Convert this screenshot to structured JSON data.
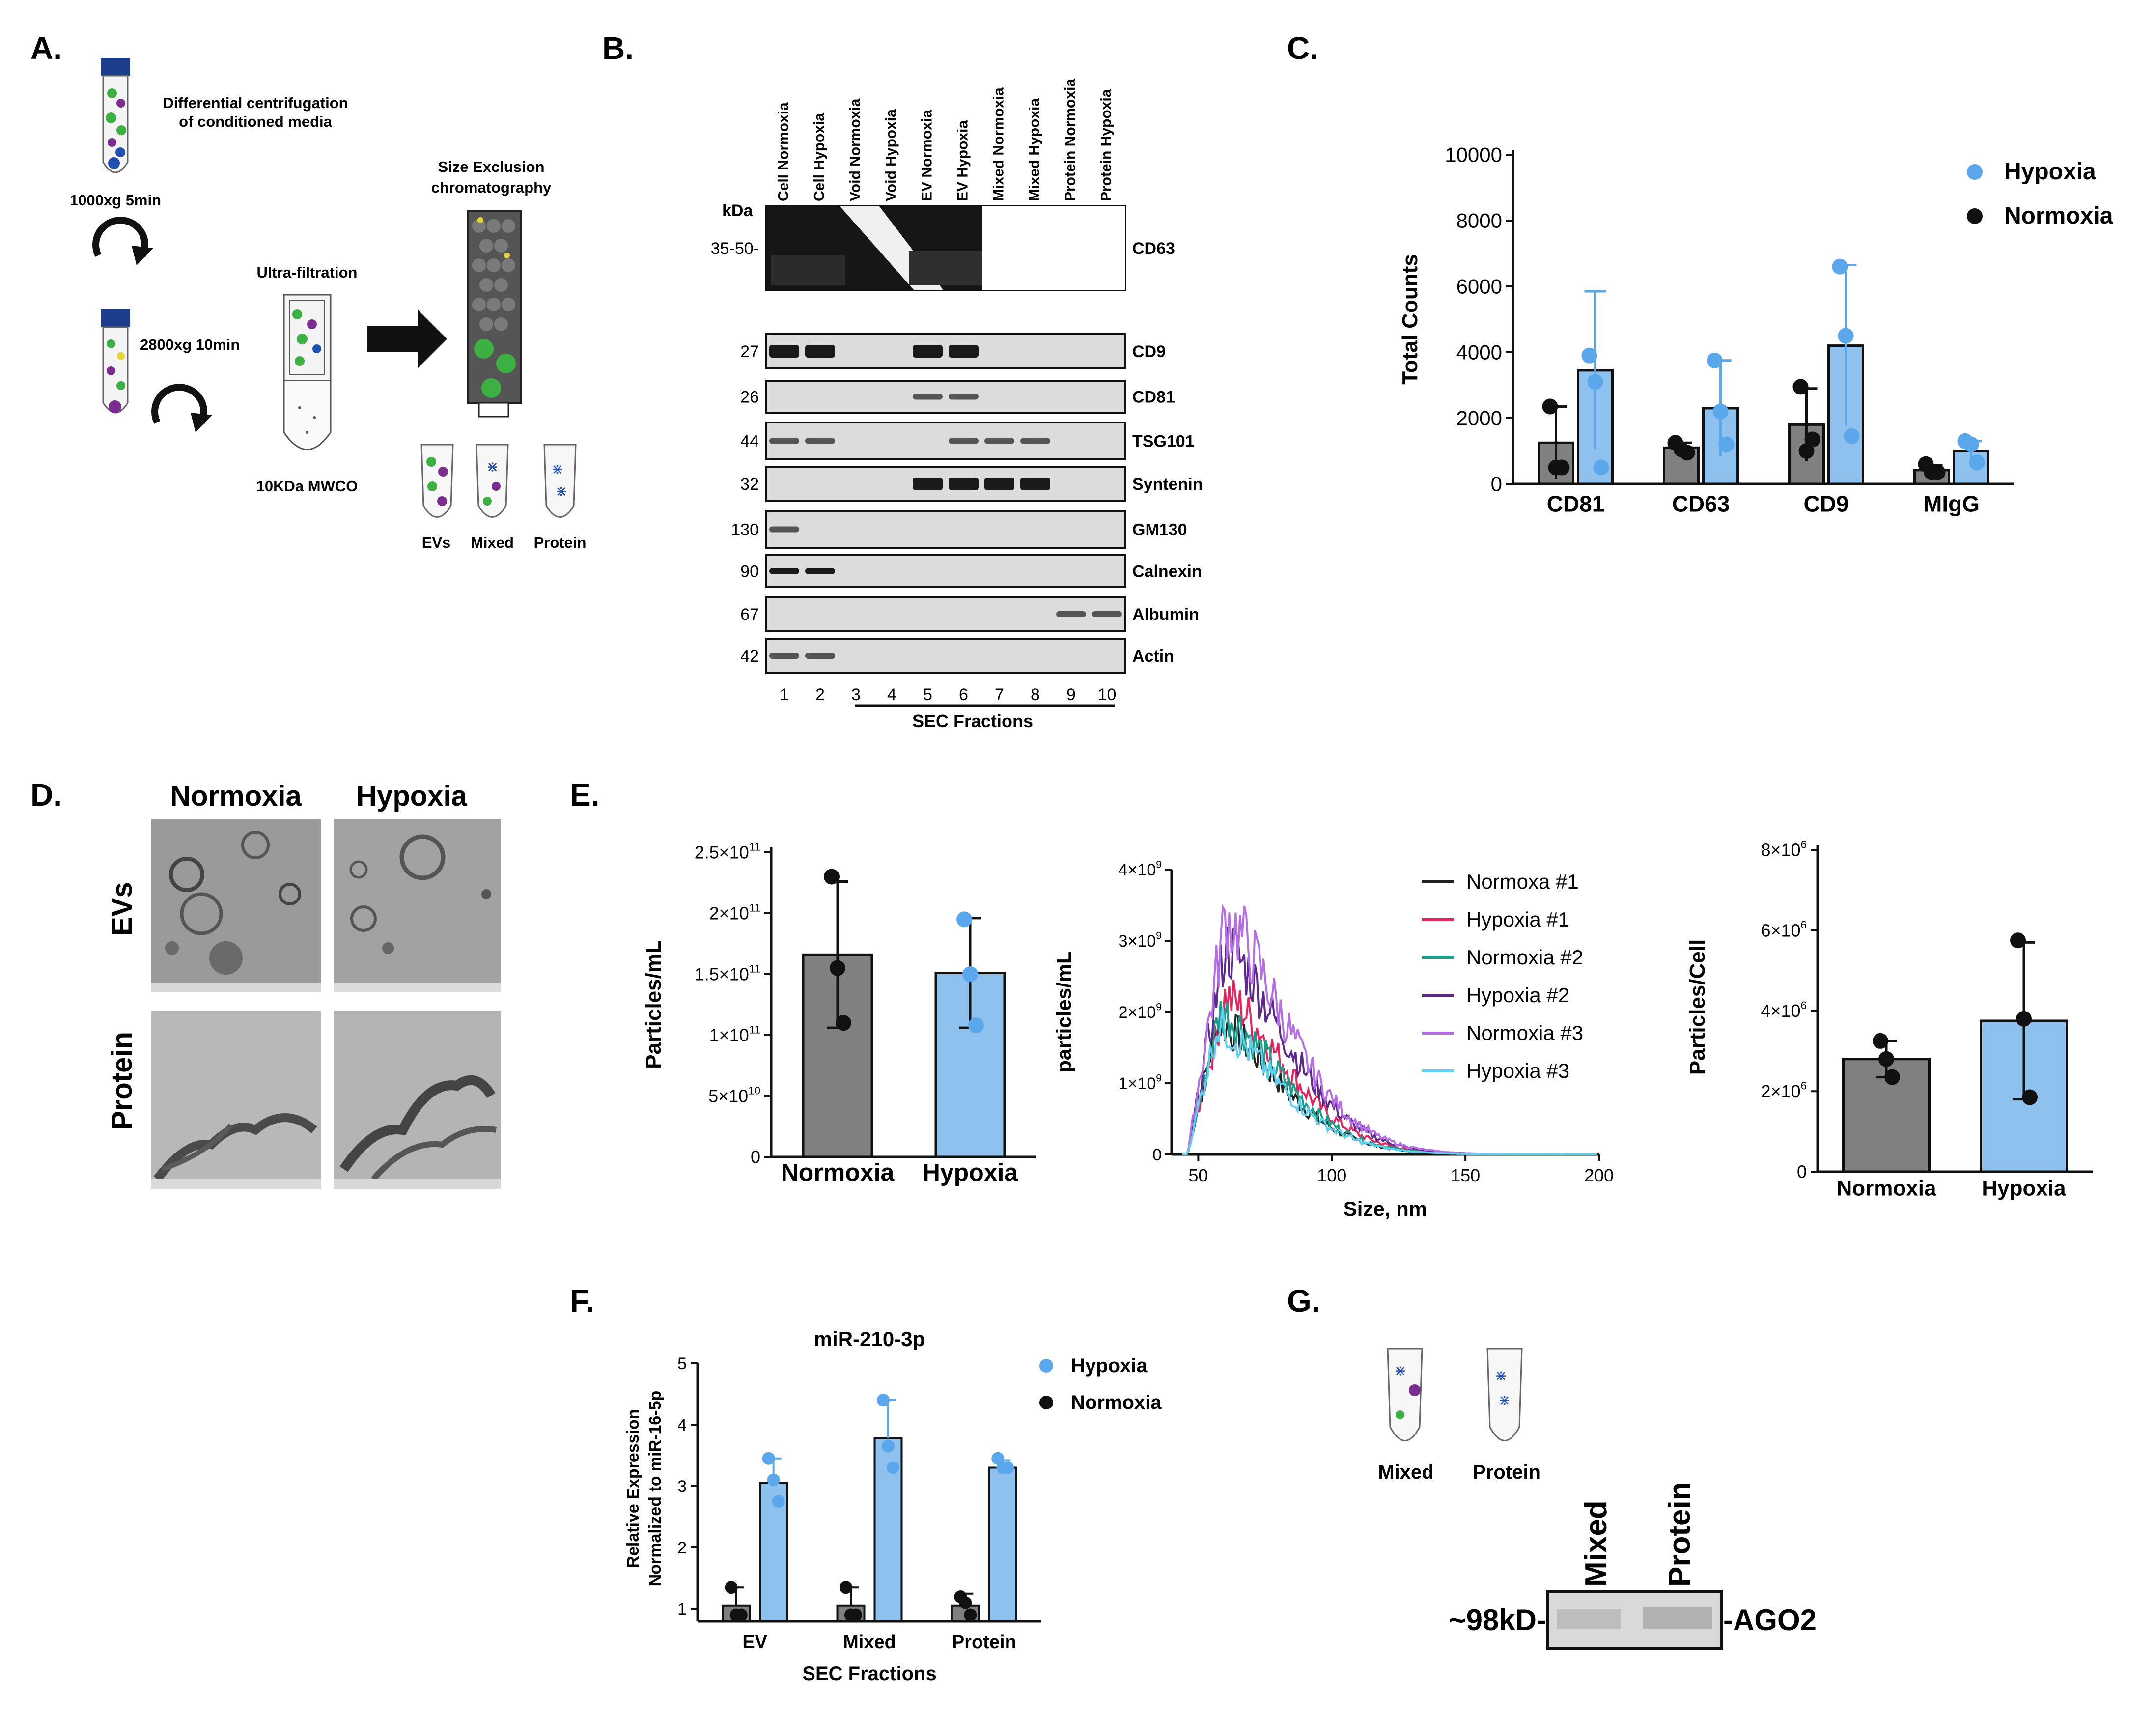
{
  "panels": {
    "a": "A.",
    "b": "B.",
    "c": "C.",
    "d": "D.",
    "e": "E.",
    "f": "F.",
    "g": "G."
  },
  "panel_a": {
    "step1": "Differential centrifugation",
    "step1b": "of conditioned media",
    "spin1": "1000xg 5min",
    "spin2": "2800xg 10min",
    "uf": "Ultra-filtration",
    "mwco": "10KDa MWCO",
    "sec1": "Size Exclusion",
    "sec2": "chromatography",
    "tubes": [
      "EVs",
      "Mixed",
      "Protein"
    ],
    "colors": {
      "tube_cap": "#1c3d8c",
      "green": "#3cb043",
      "purple": "#7b2c8f",
      "blue": "#1f4fb0",
      "yellow": "#e8d23a",
      "grey_bead": "#6e6e6e"
    }
  },
  "panel_b": {
    "lanes": [
      "Cell Normoxia",
      "Cell Hypoxia",
      "Void Normoxia",
      "Void Hypoxia",
      "EV Normoxia",
      "EV Hypoxia",
      "Mixed Normoxia",
      "Mixed Hypoxia",
      "Protein Normoxia",
      "Protein Hypoxia"
    ],
    "kda": "kDa",
    "blots": [
      {
        "mw": "35-50-",
        "name": "CD63"
      },
      {
        "mw": "27",
        "name": "CD9"
      },
      {
        "mw": "26",
        "name": "CD81"
      },
      {
        "mw": "44",
        "name": "TSG101"
      },
      {
        "mw": "32",
        "name": "Syntenin"
      },
      {
        "mw": "130",
        "name": "GM130"
      },
      {
        "mw": "90",
        "name": "Calnexin"
      },
      {
        "mw": "67",
        "name": "Albumin"
      },
      {
        "mw": "42",
        "name": "Actin"
      }
    ],
    "lane_numbers": [
      "1",
      "2",
      "3",
      "4",
      "5",
      "6",
      "7",
      "8",
      "9",
      "10"
    ],
    "sec_label": "SEC Fractions"
  },
  "panel_d": {
    "cols": [
      "Normoxia",
      "Hypoxia"
    ],
    "rows": [
      "EVs",
      "Protein"
    ]
  },
  "panel_g": {
    "tubes": [
      "Mixed",
      "Protein"
    ],
    "lanes": [
      "Mixed",
      "Protein"
    ],
    "mw": "~98kD-",
    "target": "-AGO2"
  },
  "chart_data": [
    {
      "id": "C",
      "type": "bar",
      "categories": [
        "CD81",
        "CD63",
        "CD9",
        "MIgG"
      ],
      "ylabel": "Total Counts",
      "ylim": [
        0,
        10000
      ],
      "yticks": [
        "0",
        "2000",
        "4000",
        "6000",
        "8000",
        "10000"
      ],
      "series": [
        {
          "name": "Normoxia",
          "color": "#808080",
          "values": [
            1250,
            1100,
            1800,
            420
          ],
          "err": [
            1100,
            150,
            1100,
            150
          ],
          "points": [
            [
              2350,
              500,
              500
            ],
            [
              1250,
              1050,
              950
            ],
            [
              2950,
              1000,
              1350
            ],
            [
              600,
              350,
              350
            ]
          ]
        },
        {
          "name": "Hypoxia",
          "color": "#8fc1ef",
          "values": [
            3450,
            2300,
            4200,
            1000
          ],
          "err": [
            2400,
            1450,
            2450,
            300
          ],
          "points": [
            [
              3900,
              3100,
              500
            ],
            [
              3750,
              2200,
              1200
            ],
            [
              6600,
              4500,
              1450
            ],
            [
              1300,
              1200,
              650
            ]
          ]
        }
      ],
      "legend": [
        "Hypoxia",
        "Normoxia"
      ],
      "legend_colors": [
        "#5aa7ec",
        "#111111"
      ]
    },
    {
      "id": "E1",
      "type": "bar",
      "categories": [
        "Normoxia",
        "Hypoxia"
      ],
      "values": [
        166000000000.0,
        151000000000.0
      ],
      "err": [
        60000000000.0,
        45000000000.0
      ],
      "points": [
        [
          230000000000.0,
          155000000000.0,
          110000000000.0
        ],
        [
          195000000000.0,
          150000000000.0,
          108000000000.0
        ]
      ],
      "colors": [
        "#808080",
        "#8fc1ef"
      ],
      "point_colors": [
        "#111111",
        "#5aa7ec"
      ],
      "ylabel": "Particles/mL",
      "ylim": [
        0,
        250000000000.0
      ],
      "yticks": [
        "0",
        "5×10",
        "1×10",
        "1.5×10",
        "2×10",
        "2.5×10"
      ],
      "ytick_exp": [
        "",
        "10",
        "11",
        "11",
        "11",
        "11"
      ]
    },
    {
      "id": "E2",
      "type": "line",
      "xlabel": "Size, nm",
      "ylabel": "particles/mL",
      "xlim": [
        40,
        200
      ],
      "xticks": [
        "50",
        "100",
        "150",
        "200"
      ],
      "ylim": [
        0,
        4000000000.0
      ],
      "yticks": [
        "0",
        "1×10",
        "2×10",
        "3×10",
        "4×10"
      ],
      "ytick_exp": [
        "",
        "9",
        "9",
        "9",
        "9"
      ],
      "series": [
        {
          "name": "Normoxa #1",
          "color": "#222222",
          "peak": 1850000000.0,
          "mode": 57
        },
        {
          "name": "Hypoxia #1",
          "color": "#e8245e",
          "peak": 2200000000.0,
          "mode": 60
        },
        {
          "name": "Normoxia #2",
          "color": "#1a9e8a",
          "peak": 2000000000.0,
          "mode": 58
        },
        {
          "name": "Hypoxia #2",
          "color": "#5b2a8c",
          "peak": 2900000000.0,
          "mode": 60
        },
        {
          "name": "Normoxia #3",
          "color": "#b56ee6",
          "peak": 3300000000.0,
          "mode": 60
        },
        {
          "name": "Hypoxia #3",
          "color": "#5fd0f0",
          "peak": 1800000000.0,
          "mode": 57
        }
      ]
    },
    {
      "id": "E3",
      "type": "bar",
      "categories": [
        "Normoxia",
        "Hypoxia"
      ],
      "values": [
        2800000.0,
        3750000.0
      ],
      "err": [
        450000.0,
        1950000.0
      ],
      "points": [
        [
          3250000.0,
          2800000.0,
          2350000.0
        ],
        [
          5750000.0,
          3800000.0,
          1850000.0
        ]
      ],
      "colors": [
        "#808080",
        "#8fc1ef"
      ],
      "point_colors": [
        "#111111",
        "#111111"
      ],
      "ylabel": "Particles/Cell",
      "ylim": [
        0,
        8000000.0
      ],
      "yticks": [
        "0",
        "2×10",
        "4×10",
        "6×10",
        "8×10"
      ],
      "ytick_exp": [
        "",
        "6",
        "6",
        "6",
        "6"
      ]
    },
    {
      "id": "F",
      "type": "bar",
      "title": "miR-210-3p",
      "categories": [
        "EV",
        "Mixed",
        "Protein"
      ],
      "xlabel": "SEC Fractions",
      "ylabel": [
        "Relative Expression",
        "Normalized to miR-16-5p"
      ],
      "ylim": [
        0.8,
        5
      ],
      "yticks": [
        "1",
        "2",
        "3",
        "4",
        "5"
      ],
      "series": [
        {
          "name": "Normoxia",
          "color": "#808080",
          "values": [
            1.05,
            1.05,
            1.05
          ],
          "err": [
            0.3,
            0.3,
            0.2
          ],
          "points": [
            [
              1.35,
              0.9,
              0.9
            ],
            [
              1.35,
              0.9,
              0.9
            ],
            [
              1.2,
              1.1,
              0.9
            ]
          ]
        },
        {
          "name": "Hypoxia",
          "color": "#8fc1ef",
          "values": [
            3.05,
            3.78,
            3.3
          ],
          "err": [
            0.4,
            0.62,
            0.12
          ],
          "points": [
            [
              3.45,
              3.1,
              2.75
            ],
            [
              4.4,
              3.65,
              3.3
            ],
            [
              3.45,
              3.3,
              3.3
            ]
          ]
        }
      ],
      "legend": [
        "Hypoxia",
        "Normoxia"
      ],
      "legend_colors": [
        "#5aa7ec",
        "#111111"
      ]
    }
  ]
}
